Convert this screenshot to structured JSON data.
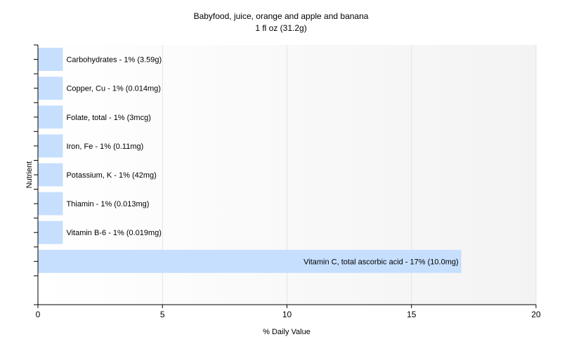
{
  "chart_data": {
    "type": "bar",
    "orientation": "horizontal",
    "title": "Babyfood, juice, orange and apple and banana",
    "subtitle": "1 fl oz (31.2g)",
    "xlabel": "% Daily Value",
    "ylabel": "Nutrient",
    "xlim": [
      0,
      20
    ],
    "xticks": [
      0,
      5,
      10,
      15,
      20
    ],
    "grid": true,
    "legend": "none",
    "categories": [
      "Carbohydrates",
      "Copper, Cu",
      "Folate, total",
      "Iron, Fe",
      "Potassium, K",
      "Thiamin",
      "Vitamin B-6",
      "Vitamin C, total ascorbic acid"
    ],
    "values": [
      1,
      1,
      1,
      1,
      1,
      1,
      1,
      17
    ],
    "labels": [
      "Carbohydrates - 1% (3.59g)",
      "Copper, Cu - 1% (0.014mg)",
      "Folate, total - 1% (3mcg)",
      "Iron, Fe - 1% (0.11mg)",
      "Potassium, K - 1% (42mg)",
      "Thiamin - 1% (0.013mg)",
      "Vitamin B-6 - 1% (0.019mg)",
      "Vitamin C, total ascorbic acid - 17% (10.0mg)"
    ],
    "bar_color": "#c6dffe",
    "grid_color": "#e3e3e3",
    "plot_background": "#f3f3f3"
  }
}
